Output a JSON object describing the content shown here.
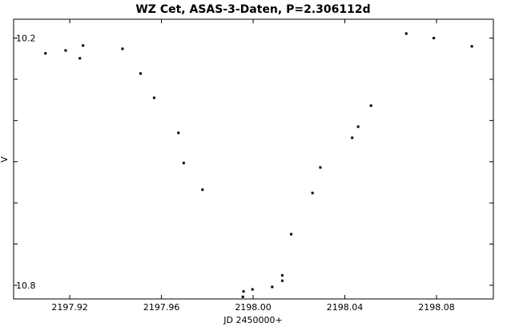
{
  "chart_data": {
    "type": "scatter",
    "title": "WZ Cet, ASAS-3-Daten, P=2.306112d",
    "xlabel": "JD 2450000+",
    "ylabel": "V",
    "xlim": [
      2197.8955,
      2198.1048
    ],
    "ylim": [
      10.8332,
      10.1542
    ],
    "y_inverted": true,
    "x_ticks": [
      2197.92,
      2197.96,
      2198.0,
      2198.04,
      2198.08
    ],
    "x_tick_labels": [
      "2197.92",
      "2197.96",
      "2198.00",
      "2198.04",
      "2198.08"
    ],
    "y_ticks": [
      10.2,
      10.3,
      10.4,
      10.5,
      10.6,
      10.7,
      10.8
    ],
    "y_tick_labels": [
      "10.2",
      "",
      "",
      "",
      "",
      "",
      "10.8"
    ],
    "grid": false,
    "marker_color": "#000000",
    "x": [
      2197.9094,
      2197.9182,
      2197.9244,
      2197.9258,
      2197.943,
      2197.9509,
      2197.9568,
      2197.9674,
      2197.9697,
      2197.9779,
      2197.9955,
      2197.9958,
      2197.9997,
      2198.0083,
      2198.0127,
      2198.0127,
      2198.0166,
      2198.0259,
      2198.0293,
      2198.0432,
      2198.0458,
      2198.0514,
      2198.0668,
      2198.0788,
      2198.0954
    ],
    "y": [
      10.237,
      10.23,
      10.249,
      10.218,
      10.226,
      10.286,
      10.345,
      10.43,
      10.503,
      10.568,
      10.828,
      10.815,
      10.81,
      10.804,
      10.789,
      10.776,
      10.676,
      10.576,
      10.514,
      10.442,
      10.415,
      10.364,
      10.189,
      10.2,
      10.22
    ]
  }
}
